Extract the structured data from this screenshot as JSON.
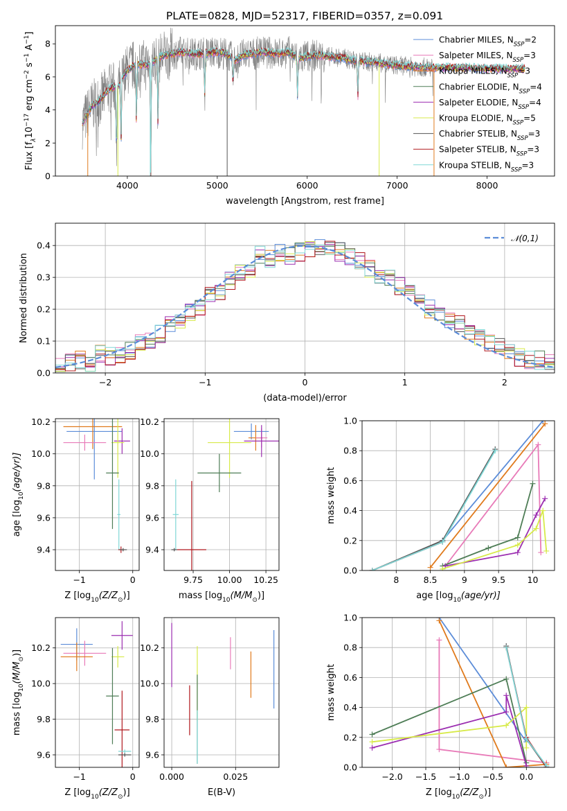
{
  "figure_title": "PLATE=0828, MJD=52317, FIBERID=0357, z=0.091",
  "colors": {
    "Chabrier MILES": "#5b8cd8",
    "Salpeter MILES": "#e87ab8",
    "Kroupa MILES": "#e07a1c",
    "Chabrier ELODIE": "#4e7d56",
    "Salpeter ELODIE": "#9b2db0",
    "Kroupa ELODIE": "#d7ea48",
    "Chabrier STELIB": "#555555",
    "Salpeter STELIB": "#b0181e",
    "Kroupa STELIB": "#7fd7d6",
    "data": "#808080"
  },
  "chart_data": [
    {
      "id": "spectrum",
      "type": "line",
      "title": "PLATE=0828, MJD=52317, FIBERID=0357, z=0.091",
      "xlabel": "wavelength [Angstrom, rest frame]",
      "ylabel_parts": [
        "Flux [f",
        "λ",
        "10",
        "−17",
        " erg cm",
        "−2",
        " s",
        "−1",
        " A",
        "−1",
        "]"
      ],
      "xlim": [
        3200,
        8750
      ],
      "ylim": [
        0,
        9.1
      ],
      "xticks": [
        4000,
        5000,
        6000,
        7000,
        8000
      ],
      "yticks": [
        0,
        2,
        4,
        6,
        8
      ],
      "legend": [
        {
          "label": "Chabrier MILES, N",
          "sub": "SSP",
          "suffix": "=2",
          "series": "Chabrier MILES"
        },
        {
          "label": "Salpeter MILES, N",
          "sub": "SSP",
          "suffix": "=3",
          "series": "Salpeter MILES"
        },
        {
          "label": "Kroupa MILES, N",
          "sub": "SSP",
          "suffix": "=3",
          "series": "Kroupa MILES"
        },
        {
          "label": "Chabrier ELODIE, N",
          "sub": "SSP",
          "suffix": "=4",
          "series": "Chabrier ELODIE"
        },
        {
          "label": "Salpeter ELODIE, N",
          "sub": "SSP",
          "suffix": "=4",
          "series": "Salpeter ELODIE"
        },
        {
          "label": "Kroupa ELODIE, N",
          "sub": "SSP",
          "suffix": "=5",
          "series": "Kroupa ELODIE"
        },
        {
          "label": "Chabrier STELIB, N",
          "sub": "SSP",
          "suffix": "=3",
          "series": "Chabrier STELIB"
        },
        {
          "label": "Salpeter STELIB, N",
          "sub": "SSP",
          "suffix": "=3",
          "series": "Salpeter STELIB"
        },
        {
          "label": "Kroupa STELIB, N",
          "sub": "SSP",
          "suffix": "=3",
          "series": "Kroupa STELIB"
        }
      ],
      "continuum": [
        [
          3500,
          3.2
        ],
        [
          3600,
          4.2
        ],
        [
          3700,
          4.6
        ],
        [
          3800,
          5.3
        ],
        [
          3900,
          5.4
        ],
        [
          3950,
          6.0
        ],
        [
          4000,
          6.4
        ],
        [
          4100,
          6.8
        ],
        [
          4200,
          6.7
        ],
        [
          4300,
          7.0
        ],
        [
          4400,
          7.3
        ],
        [
          4500,
          7.4
        ],
        [
          4600,
          7.5
        ],
        [
          4700,
          7.4
        ],
        [
          4800,
          7.4
        ],
        [
          4900,
          7.45
        ],
        [
          5000,
          7.5
        ],
        [
          5100,
          7.4
        ],
        [
          5200,
          7.0
        ],
        [
          5300,
          7.35
        ],
        [
          5400,
          7.4
        ],
        [
          5500,
          7.5
        ],
        [
          5600,
          7.45
        ],
        [
          5700,
          7.4
        ],
        [
          5800,
          7.5
        ],
        [
          5900,
          7.1
        ],
        [
          6000,
          7.25
        ],
        [
          6100,
          7.3
        ],
        [
          6200,
          7.25
        ],
        [
          6300,
          7.2
        ],
        [
          6400,
          7.15
        ],
        [
          6500,
          7.0
        ],
        [
          6600,
          6.95
        ],
        [
          6700,
          6.9
        ],
        [
          6800,
          6.85
        ],
        [
          6900,
          6.75
        ],
        [
          7000,
          6.7
        ],
        [
          7100,
          6.65
        ],
        [
          7200,
          6.6
        ],
        [
          7400,
          6.55
        ],
        [
          7600,
          6.55
        ],
        [
          7800,
          6.55
        ],
        [
          8000,
          6.5
        ],
        [
          8200,
          6.5
        ],
        [
          8400,
          6.5
        ]
      ]
    },
    {
      "id": "residual_histogram",
      "type": "step",
      "xlabel": "(data-model)/error",
      "ylabel": "Normed distribution",
      "xlim": [
        -2.5,
        2.5
      ],
      "ylim": [
        0,
        0.47
      ],
      "xticks": [
        -2,
        -1,
        0,
        1,
        2
      ],
      "yticks": [
        0.0,
        0.1,
        0.2,
        0.3,
        0.4
      ],
      "reference_curve": {
        "label": "𝒩(0,1)",
        "mean": 0,
        "sigma": 1
      },
      "bin_edges_range": [
        -2.5,
        2.5
      ],
      "bin_count": 50,
      "envelope": [
        0.02,
        0.03,
        0.04,
        0.03,
        0.06,
        0.05,
        0.06,
        0.07,
        0.09,
        0.1,
        0.12,
        0.15,
        0.17,
        0.19,
        0.21,
        0.24,
        0.25,
        0.29,
        0.31,
        0.33,
        0.37,
        0.36,
        0.38,
        0.37,
        0.38,
        0.39,
        0.4,
        0.39,
        0.38,
        0.36,
        0.35,
        0.33,
        0.31,
        0.3,
        0.27,
        0.25,
        0.23,
        0.2,
        0.19,
        0.17,
        0.15,
        0.13,
        0.11,
        0.09,
        0.08,
        0.06,
        0.05,
        0.04,
        0.04,
        0.03
      ]
    },
    {
      "id": "age_vs_Z",
      "type": "errorbar",
      "xlabel_text": "Z [log",
      "xlabel_sub": "10",
      "xlabel_rest": "(Z/Z",
      "xlabel_sun_sub": "⊙",
      "xlabel_end": ")]",
      "ylabel_text": "age  [log",
      "ylabel_sub": "10",
      "ylabel_rest": "(age/yr)]",
      "xlim": [
        -1.45,
        0.12
      ],
      "ylim": [
        9.27,
        10.22
      ],
      "xticks": [
        -1,
        0
      ],
      "yticks": [
        9.4,
        9.6,
        9.8,
        10.0,
        10.2
      ],
      "points": [
        {
          "series": "Chabrier MILES",
          "x": -0.72,
          "xerr": 0.52,
          "y": 10.14,
          "yerr": 0.3
        },
        {
          "series": "Kroupa MILES",
          "x": -0.75,
          "xerr": 0.55,
          "y": 10.17,
          "yerr": 0.14
        },
        {
          "series": "Salpeter MILES",
          "x": -0.9,
          "xerr": 0.4,
          "y": 10.07,
          "yerr": 0.05
        },
        {
          "series": "Salpeter ELODIE",
          "x": -0.2,
          "xerr": 0.15,
          "y": 10.08,
          "yerr": 0.08
        },
        {
          "series": "Kroupa ELODIE",
          "x": -0.28,
          "xerr": 0.12,
          "y": 10.07,
          "yerr": 0.22
        },
        {
          "series": "Chabrier ELODIE",
          "x": -0.38,
          "xerr": 0.12,
          "y": 9.88,
          "yerr": 0.35
        },
        {
          "series": "Kroupa STELIB",
          "x": -0.26,
          "xerr": 0.03,
          "y": 9.62,
          "yerr": 0.22
        },
        {
          "series": "Salpeter STELIB",
          "x": -0.22,
          "xerr": 0.05,
          "y": 9.4,
          "yerr": 0.02
        },
        {
          "series": "Chabrier STELIB",
          "x": -0.18,
          "xerr": 0.07,
          "y": 9.4,
          "yerr": 0.01
        }
      ]
    },
    {
      "id": "age_vs_mass",
      "type": "errorbar",
      "xlabel_text": "mass [log",
      "xlabel_sub": "10",
      "xlabel_rest": "(M/M",
      "xlabel_sun_sub": "⊙",
      "xlabel_end": ")]",
      "xlim": [
        9.55,
        10.34
      ],
      "ylim": [
        9.27,
        10.22
      ],
      "xticks": [
        9.75,
        10.0,
        10.25
      ],
      "xtick_labels": [
        "9.75",
        "10.00",
        "10.25"
      ],
      "yticks": [
        9.4,
        9.6,
        9.8,
        10.0,
        10.2
      ],
      "points": [
        {
          "series": "Chabrier MILES",
          "x": 10.15,
          "xerr": 0.12,
          "y": 10.14,
          "yerr": 0.05
        },
        {
          "series": "Kroupa MILES",
          "x": 10.18,
          "xerr": 0.05,
          "y": 10.1,
          "yerr": 0.08
        },
        {
          "series": "Salpeter MILES",
          "x": 10.22,
          "xerr": 0.04,
          "y": 10.1,
          "yerr": 0.06
        },
        {
          "series": "Salpeter ELODIE",
          "x": 10.22,
          "xerr": 0.12,
          "y": 10.08,
          "yerr": 0.1
        },
        {
          "series": "Kroupa ELODIE",
          "x": 10.0,
          "xerr": 0.15,
          "y": 10.07,
          "yerr": 0.22
        },
        {
          "series": "Chabrier ELODIE",
          "x": 9.93,
          "xerr": 0.15,
          "y": 9.88,
          "yerr": 0.12
        },
        {
          "series": "Kroupa STELIB",
          "x": 9.63,
          "xerr": 0.02,
          "y": 9.62,
          "yerr": 0.22
        },
        {
          "series": "Salpeter STELIB",
          "x": 9.74,
          "xerr": 0.1,
          "y": 9.4,
          "yerr": 0.43
        },
        {
          "series": "Chabrier STELIB",
          "x": 9.62,
          "xerr": 0.02,
          "y": 9.4,
          "yerr": 0.01
        }
      ]
    },
    {
      "id": "weight_vs_age",
      "type": "line",
      "xlabel_text": "age  [log",
      "xlabel_sub": "10",
      "xlabel_rest": "(age/yr)]",
      "ylabel": "mass weight",
      "xlim": [
        7.5,
        10.32
      ],
      "ylim": [
        0,
        1.0
      ],
      "xticks": [
        8.0,
        8.5,
        9.0,
        9.5,
        10.0
      ],
      "yticks": [
        0.0,
        0.2,
        0.4,
        0.6,
        0.8,
        1.0
      ],
      "series": [
        {
          "name": "Chabrier MILES",
          "x": [
            8.68,
            10.15
          ],
          "y": [
            0.2,
            1.0
          ]
        },
        {
          "name": "Salpeter MILES",
          "x": [
            8.72,
            10.08,
            10.12
          ],
          "y": [
            0.03,
            0.84,
            0.12
          ]
        },
        {
          "name": "Kroupa MILES",
          "x": [
            8.5,
            10.18
          ],
          "y": [
            0.02,
            0.98
          ]
        },
        {
          "name": "Chabrier ELODIE",
          "x": [
            8.68,
            9.35,
            9.78,
            10.0
          ],
          "y": [
            0.03,
            0.15,
            0.22,
            0.58
          ]
        },
        {
          "name": "Salpeter ELODIE",
          "x": [
            8.72,
            9.78,
            10.05,
            10.18
          ],
          "y": [
            0.03,
            0.12,
            0.37,
            0.48
          ]
        },
        {
          "name": "Kroupa ELODIE",
          "x": [
            8.68,
            9.78,
            10.05,
            10.15,
            10.2
          ],
          "y": [
            0.01,
            0.17,
            0.28,
            0.4,
            0.13
          ]
        },
        {
          "name": "Chabrier STELIB",
          "x": [
            7.65,
            8.68,
            9.45
          ],
          "y": [
            0.0,
            0.2,
            0.81
          ]
        },
        {
          "name": "Salpeter STELIB",
          "x": [
            7.65,
            8.68
          ],
          "y": [
            0.0,
            0.19
          ]
        },
        {
          "name": "Kroupa STELIB",
          "x": [
            7.65,
            8.68,
            9.45
          ],
          "y": [
            0.0,
            0.19,
            0.8
          ]
        }
      ]
    },
    {
      "id": "mass_vs_Z",
      "type": "errorbar",
      "xlabel_text": "Z [log",
      "xlabel_sub": "10",
      "xlabel_rest": "(Z/Z",
      "xlabel_sun_sub": "⊙",
      "xlabel_end": ")]",
      "ylabel_text": "mass [log",
      "ylabel_sub": "10",
      "ylabel_rest": "(M/M",
      "ylabel_sun_sub": "⊙",
      "ylabel_end": ")]",
      "xlim": [
        -1.45,
        0.12
      ],
      "ylim": [
        9.53,
        10.37
      ],
      "xticks": [
        -1,
        0
      ],
      "yticks": [
        9.6,
        9.8,
        10.0,
        10.2
      ],
      "points": [
        {
          "series": "Chabrier MILES",
          "x": -1.05,
          "xerr": 0.3,
          "y": 10.22,
          "yerr": 0.09
        },
        {
          "series": "Salpeter MILES",
          "x": -0.9,
          "xerr": 0.4,
          "y": 10.17,
          "yerr": 0.07
        },
        {
          "series": "Kroupa MILES",
          "x": -1.05,
          "xerr": 0.3,
          "y": 10.15,
          "yerr": 0.08
        },
        {
          "series": "Salpeter ELODIE",
          "x": -0.2,
          "xerr": 0.2,
          "y": 10.27,
          "yerr": 0.08
        },
        {
          "series": "Kroupa ELODIE",
          "x": -0.28,
          "xerr": 0.12,
          "y": 10.15,
          "yerr": 0.06
        },
        {
          "series": "Chabrier ELODIE",
          "x": -0.38,
          "xerr": 0.12,
          "y": 9.93,
          "yerr": 0.27
        },
        {
          "series": "Salpeter STELIB",
          "x": -0.2,
          "xerr": 0.14,
          "y": 9.74,
          "yerr": 0.22
        },
        {
          "series": "Kroupa STELIB",
          "x": -0.15,
          "xerr": 0.12,
          "y": 9.62,
          "yerr": 0.01
        },
        {
          "series": "Chabrier STELIB",
          "x": -0.15,
          "xerr": 0.12,
          "y": 9.6,
          "yerr": 0.01
        }
      ]
    },
    {
      "id": "mass_vs_ebv",
      "type": "errorbar",
      "xlabel": "E(B-V)",
      "xlim": [
        -0.003,
        0.042
      ],
      "ylim": [
        9.53,
        10.37
      ],
      "xticks": [
        0.0,
        0.025
      ],
      "xtick_labels": [
        "0.000",
        "0.025"
      ],
      "yticks": [
        9.6,
        9.8,
        10.0,
        10.2
      ],
      "points": [
        {
          "series": "Salpeter ELODIE",
          "x": 0.0,
          "xerr": 0,
          "y": 10.16,
          "yerr": 0.18
        },
        {
          "series": "Salpeter STELIB",
          "x": 0.007,
          "xerr": 0,
          "y": 9.85,
          "yerr": 0.14
        },
        {
          "series": "Kroupa ELODIE",
          "x": 0.01,
          "xerr": 0,
          "y": 10.0,
          "yerr": 0.21
        },
        {
          "series": "Chabrier ELODIE",
          "x": 0.01,
          "xerr": 0,
          "y": 9.8,
          "yerr": 0.25
        },
        {
          "series": "Kroupa STELIB",
          "x": 0.01,
          "xerr": 0,
          "y": 9.7,
          "yerr": 0.15
        },
        {
          "series": "Salpeter MILES",
          "x": 0.023,
          "xerr": 0,
          "y": 10.17,
          "yerr": 0.09
        },
        {
          "series": "Kroupa MILES",
          "x": 0.031,
          "xerr": 0,
          "y": 10.05,
          "yerr": 0.13
        },
        {
          "series": "Chabrier MILES",
          "x": 0.04,
          "xerr": 0,
          "y": 10.08,
          "yerr": 0.22
        }
      ]
    },
    {
      "id": "weight_vs_Z",
      "type": "line",
      "xlabel_text": "Z [log",
      "xlabel_sub": "10",
      "xlabel_rest": "(Z/Z",
      "xlabel_sun_sub": "⊙",
      "xlabel_end": ")]",
      "ylabel": "mass weight",
      "xlim": [
        -2.45,
        0.42
      ],
      "ylim": [
        0,
        1.0
      ],
      "xticks": [
        -2.0,
        -1.5,
        -1.0,
        -0.5,
        0.0
      ],
      "xtick_labels": [
        "−2.0",
        "−1.5",
        "−1.0",
        "−0.5",
        "0.0"
      ],
      "yticks": [
        0.0,
        0.2,
        0.4,
        0.6,
        0.8,
        1.0
      ],
      "series": [
        {
          "name": "Chabrier MILES",
          "x": [
            -1.3,
            0.0
          ],
          "y": [
            1.0,
            0.17
          ]
        },
        {
          "name": "Salpeter MILES",
          "x": [
            -1.3,
            -1.3,
            0.3
          ],
          "y": [
            0.85,
            0.12,
            0.03
          ]
        },
        {
          "name": "Kroupa MILES",
          "x": [
            -1.3,
            -0.3,
            0.3
          ],
          "y": [
            0.98,
            0.0,
            0.02
          ]
        },
        {
          "name": "Chabrier ELODIE",
          "x": [
            -2.3,
            -0.3,
            0.0
          ],
          "y": [
            0.22,
            0.59,
            0.03
          ]
        },
        {
          "name": "Salpeter ELODIE",
          "x": [
            -2.3,
            -0.3,
            -0.3,
            0.0
          ],
          "y": [
            0.13,
            0.37,
            0.48,
            0.01
          ]
        },
        {
          "name": "Kroupa ELODIE",
          "x": [
            -2.3,
            -0.3,
            0.0,
            0.0
          ],
          "y": [
            0.17,
            0.28,
            0.4,
            0.13
          ]
        },
        {
          "name": "Chabrier STELIB",
          "x": [
            -0.3,
            0.0,
            0.3
          ],
          "y": [
            0.81,
            0.19,
            0.0
          ]
        },
        {
          "name": "Salpeter STELIB",
          "x": [
            -0.3,
            0.0,
            0.3
          ],
          "y": [
            0.8,
            0.2,
            0.0
          ]
        },
        {
          "name": "Kroupa STELIB",
          "x": [
            -0.3,
            0.0,
            0.3
          ],
          "y": [
            0.8,
            0.19,
            0.01
          ]
        }
      ]
    }
  ]
}
